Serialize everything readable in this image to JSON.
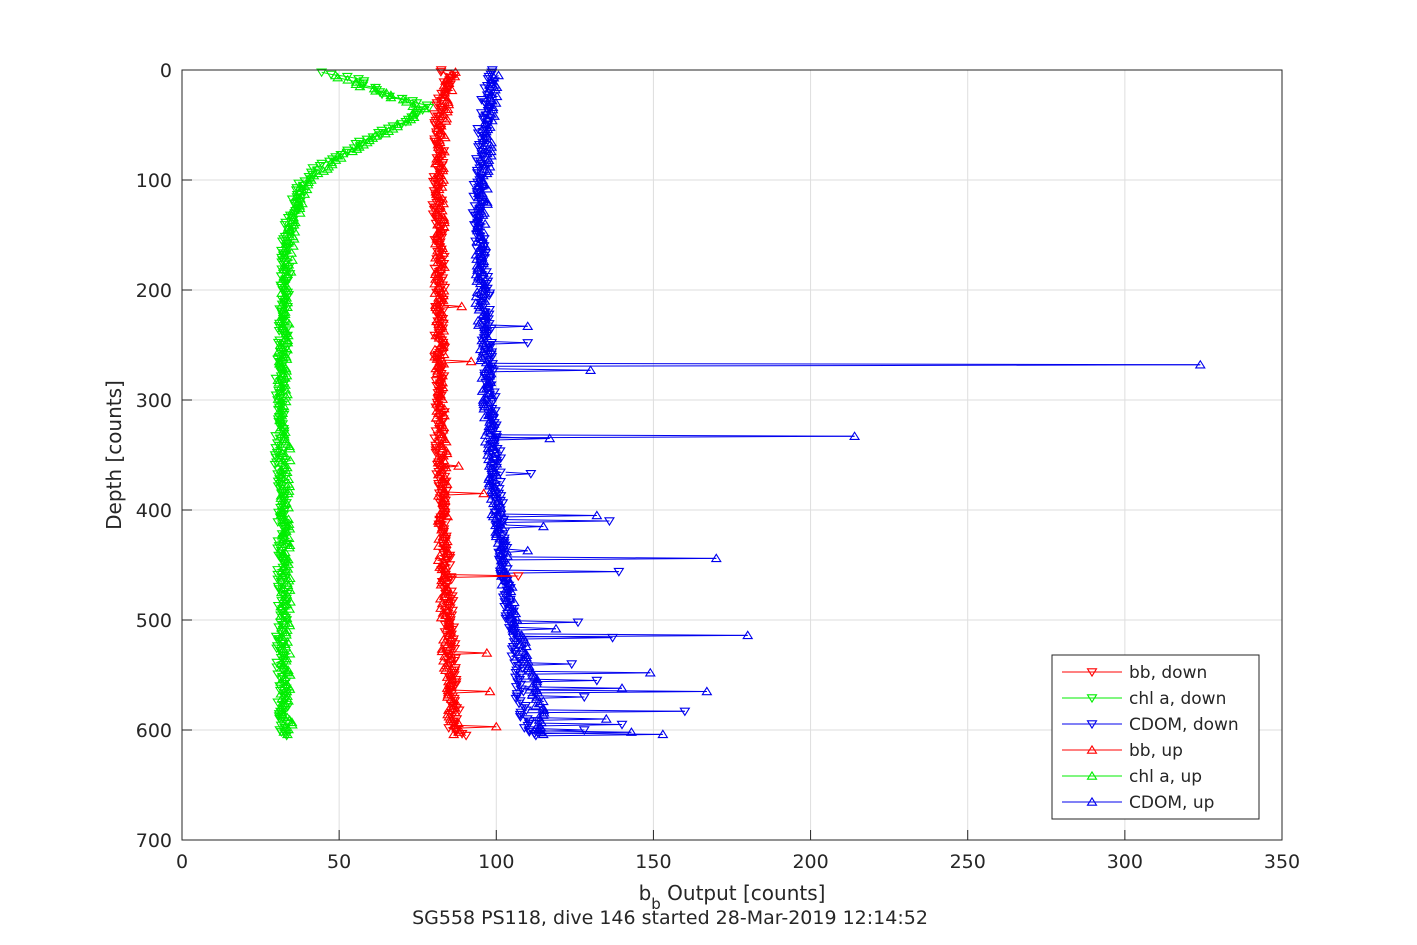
{
  "chart_data": {
    "type": "line",
    "xlabel_main": "b",
    "xlabel_sub": "b",
    "xlabel_rest": " Output [counts]",
    "ylabel": "Depth [counts]",
    "caption": "SG558 PS118, dive 146 started 28-Mar-2019 12:14:52",
    "xlim": [
      0,
      350
    ],
    "ylim": [
      0,
      700
    ],
    "y_reversed": true,
    "grid": true,
    "legend_position": "bottom-right",
    "x_ticks": [
      "0",
      "50",
      "100",
      "150",
      "200",
      "250",
      "300",
      "350"
    ],
    "y_ticks": [
      "0",
      "100",
      "200",
      "300",
      "400",
      "500",
      "600",
      "700"
    ],
    "series": [
      {
        "name": "bb, down",
        "color": "#ff0000",
        "marker": "triangle-down",
        "points": [
          [
            82,
            0
          ],
          [
            85,
            5
          ],
          [
            84,
            15
          ],
          [
            82,
            30
          ],
          [
            81,
            50
          ],
          [
            82,
            80
          ],
          [
            81,
            110
          ],
          [
            82,
            150
          ],
          [
            82,
            200
          ],
          [
            82,
            250
          ],
          [
            82,
            300
          ],
          [
            82,
            350
          ],
          [
            83,
            400
          ],
          [
            84,
            450
          ],
          [
            85,
            500
          ],
          [
            86,
            550
          ],
          [
            87,
            580
          ],
          [
            86,
            600
          ],
          [
            90,
            605
          ]
        ]
      },
      {
        "name": "chl a, down",
        "color": "#00ee00",
        "marker": "triangle-down",
        "points": [
          [
            45,
            2
          ],
          [
            56,
            8
          ],
          [
            62,
            20
          ],
          [
            72,
            28
          ],
          [
            78,
            32
          ],
          [
            72,
            45
          ],
          [
            58,
            65
          ],
          [
            44,
            85
          ],
          [
            38,
            105
          ],
          [
            35,
            130
          ],
          [
            33,
            160
          ],
          [
            33,
            200
          ],
          [
            32,
            250
          ],
          [
            31,
            300
          ],
          [
            31,
            350
          ],
          [
            32,
            400
          ],
          [
            32,
            450
          ],
          [
            32,
            500
          ],
          [
            31,
            530
          ],
          [
            32,
            560
          ],
          [
            32,
            600
          ],
          [
            33,
            605
          ]
        ]
      },
      {
        "name": "CDOM, down",
        "color": "#0000ee",
        "marker": "triangle-down",
        "points": [
          [
            99,
            0
          ],
          [
            98,
            10
          ],
          [
            97,
            25
          ],
          [
            96,
            45
          ],
          [
            95,
            70
          ],
          [
            94,
            100
          ],
          [
            94,
            130
          ],
          [
            95,
            160
          ],
          [
            96,
            190
          ],
          [
            97,
            220
          ],
          [
            97,
            250
          ],
          [
            98,
            280
          ],
          [
            99,
            310
          ],
          [
            100,
            340
          ],
          [
            100,
            370
          ],
          [
            101,
            400
          ],
          [
            102,
            430
          ],
          [
            103,
            460
          ],
          [
            104,
            490
          ],
          [
            106,
            520
          ],
          [
            107,
            550
          ],
          [
            108,
            580
          ],
          [
            110,
            600
          ],
          [
            112,
            605
          ]
        ]
      },
      {
        "name": "bb, up",
        "color": "#ff0000",
        "marker": "triangle-up",
        "points": [
          [
            88,
            604
          ],
          [
            86,
            590
          ],
          [
            86,
            570
          ],
          [
            85,
            550
          ],
          [
            84,
            520
          ],
          [
            84,
            500
          ],
          [
            83,
            470
          ],
          [
            83,
            450
          ],
          [
            83,
            420
          ],
          [
            83,
            400
          ],
          [
            83,
            370
          ],
          [
            83,
            340
          ],
          [
            82,
            310
          ],
          [
            82,
            280
          ],
          [
            82,
            250
          ],
          [
            82,
            220
          ],
          [
            82,
            190
          ],
          [
            82,
            160
          ],
          [
            82,
            130
          ],
          [
            82,
            100
          ],
          [
            82,
            70
          ],
          [
            83,
            40
          ],
          [
            85,
            10
          ],
          [
            86,
            2
          ]
        ]
      },
      {
        "name": "chl a, up",
        "color": "#00ee00",
        "marker": "triangle-up",
        "points": [
          [
            34,
            604
          ],
          [
            33,
            580
          ],
          [
            33,
            550
          ],
          [
            33,
            520
          ],
          [
            33,
            490
          ],
          [
            33,
            460
          ],
          [
            33,
            430
          ],
          [
            33,
            400
          ],
          [
            33,
            370
          ],
          [
            33,
            340
          ],
          [
            32,
            310
          ],
          [
            32,
            280
          ],
          [
            32,
            250
          ],
          [
            33,
            220
          ],
          [
            33,
            190
          ],
          [
            34,
            160
          ],
          [
            36,
            130
          ],
          [
            40,
            100
          ],
          [
            50,
            80
          ],
          [
            62,
            60
          ],
          [
            72,
            45
          ],
          [
            76,
            35
          ],
          [
            68,
            25
          ],
          [
            58,
            15
          ],
          [
            48,
            5
          ]
        ]
      },
      {
        "name": "CDOM, up",
        "color": "#0000ee",
        "marker": "triangle-up",
        "points": [
          [
            115,
            604
          ],
          [
            114,
            580
          ],
          [
            112,
            560
          ],
          [
            110,
            540
          ],
          [
            108,
            520
          ],
          [
            106,
            500
          ],
          [
            104,
            480
          ],
          [
            103,
            460
          ],
          [
            102,
            440
          ],
          [
            101,
            420
          ],
          [
            100,
            400
          ],
          [
            99,
            380
          ],
          [
            99,
            360
          ],
          [
            98,
            340
          ],
          [
            98,
            320
          ],
          [
            97,
            300
          ],
          [
            97,
            280
          ],
          [
            96,
            260
          ],
          [
            96,
            240
          ],
          [
            95,
            220
          ],
          [
            95,
            200
          ],
          [
            95,
            180
          ],
          [
            95,
            160
          ],
          [
            95,
            140
          ],
          [
            96,
            120
          ],
          [
            96,
            100
          ],
          [
            97,
            80
          ],
          [
            97,
            60
          ],
          [
            98,
            40
          ],
          [
            99,
            20
          ],
          [
            100,
            5
          ]
        ]
      }
    ],
    "cdom_spikes": [
      {
        "base": 98,
        "peak": 324,
        "depth": 268,
        "marker": "triangle-up"
      },
      {
        "base": 99,
        "peak": 130,
        "depth": 273,
        "marker": "triangle-up"
      },
      {
        "base": 99,
        "peak": 214,
        "depth": 333,
        "marker": "triangle-up"
      },
      {
        "base": 99,
        "peak": 117,
        "depth": 335,
        "marker": "triangle-up"
      },
      {
        "base": 96,
        "peak": 110,
        "depth": 233,
        "marker": "triangle-up"
      },
      {
        "base": 96,
        "peak": 110,
        "depth": 248,
        "marker": "triangle-down"
      },
      {
        "base": 103,
        "peak": 111,
        "depth": 367,
        "marker": "triangle-down"
      },
      {
        "base": 102,
        "peak": 132,
        "depth": 405,
        "marker": "triangle-up"
      },
      {
        "base": 102,
        "peak": 136,
        "depth": 410,
        "marker": "triangle-down"
      },
      {
        "base": 103,
        "peak": 115,
        "depth": 415,
        "marker": "triangle-up"
      },
      {
        "base": 104,
        "peak": 110,
        "depth": 437,
        "marker": "triangle-up"
      },
      {
        "base": 104,
        "peak": 170,
        "depth": 444,
        "marker": "triangle-up"
      },
      {
        "base": 104,
        "peak": 139,
        "depth": 456,
        "marker": "triangle-down"
      },
      {
        "base": 106,
        "peak": 126,
        "depth": 502,
        "marker": "triangle-down"
      },
      {
        "base": 106,
        "peak": 119,
        "depth": 508,
        "marker": "triangle-up"
      },
      {
        "base": 107,
        "peak": 180,
        "depth": 514,
        "marker": "triangle-up"
      },
      {
        "base": 106,
        "peak": 137,
        "depth": 516,
        "marker": "triangle-down"
      },
      {
        "base": 107,
        "peak": 124,
        "depth": 540,
        "marker": "triangle-down"
      },
      {
        "base": 108,
        "peak": 149,
        "depth": 548,
        "marker": "triangle-up"
      },
      {
        "base": 108,
        "peak": 132,
        "depth": 555,
        "marker": "triangle-down"
      },
      {
        "base": 109,
        "peak": 167,
        "depth": 565,
        "marker": "triangle-up"
      },
      {
        "base": 109,
        "peak": 140,
        "depth": 562,
        "marker": "triangle-up"
      },
      {
        "base": 110,
        "peak": 128,
        "depth": 570,
        "marker": "triangle-down"
      },
      {
        "base": 110,
        "peak": 160,
        "depth": 583,
        "marker": "triangle-down"
      },
      {
        "base": 111,
        "peak": 135,
        "depth": 590,
        "marker": "triangle-up"
      },
      {
        "base": 112,
        "peak": 140,
        "depth": 595,
        "marker": "triangle-down"
      },
      {
        "base": 112,
        "peak": 143,
        "depth": 602,
        "marker": "triangle-up"
      },
      {
        "base": 113,
        "peak": 153,
        "depth": 604,
        "marker": "triangle-up"
      },
      {
        "base": 112,
        "peak": 128,
        "depth": 600,
        "marker": "triangle-down"
      }
    ],
    "bb_spikes": [
      {
        "base": 83,
        "peak": 89,
        "depth": 215,
        "marker": "triangle-up"
      },
      {
        "base": 83,
        "peak": 92,
        "depth": 265,
        "marker": "triangle-up"
      },
      {
        "base": 83,
        "peak": 88,
        "depth": 360,
        "marker": "triangle-up"
      },
      {
        "base": 84,
        "peak": 96,
        "depth": 385,
        "marker": "triangle-up"
      },
      {
        "base": 84,
        "peak": 107,
        "depth": 460,
        "marker": "triangle-down"
      },
      {
        "base": 85,
        "peak": 97,
        "depth": 530,
        "marker": "triangle-up"
      },
      {
        "base": 86,
        "peak": 98,
        "depth": 565,
        "marker": "triangle-up"
      },
      {
        "base": 87,
        "peak": 100,
        "depth": 597,
        "marker": "triangle-up"
      }
    ]
  }
}
